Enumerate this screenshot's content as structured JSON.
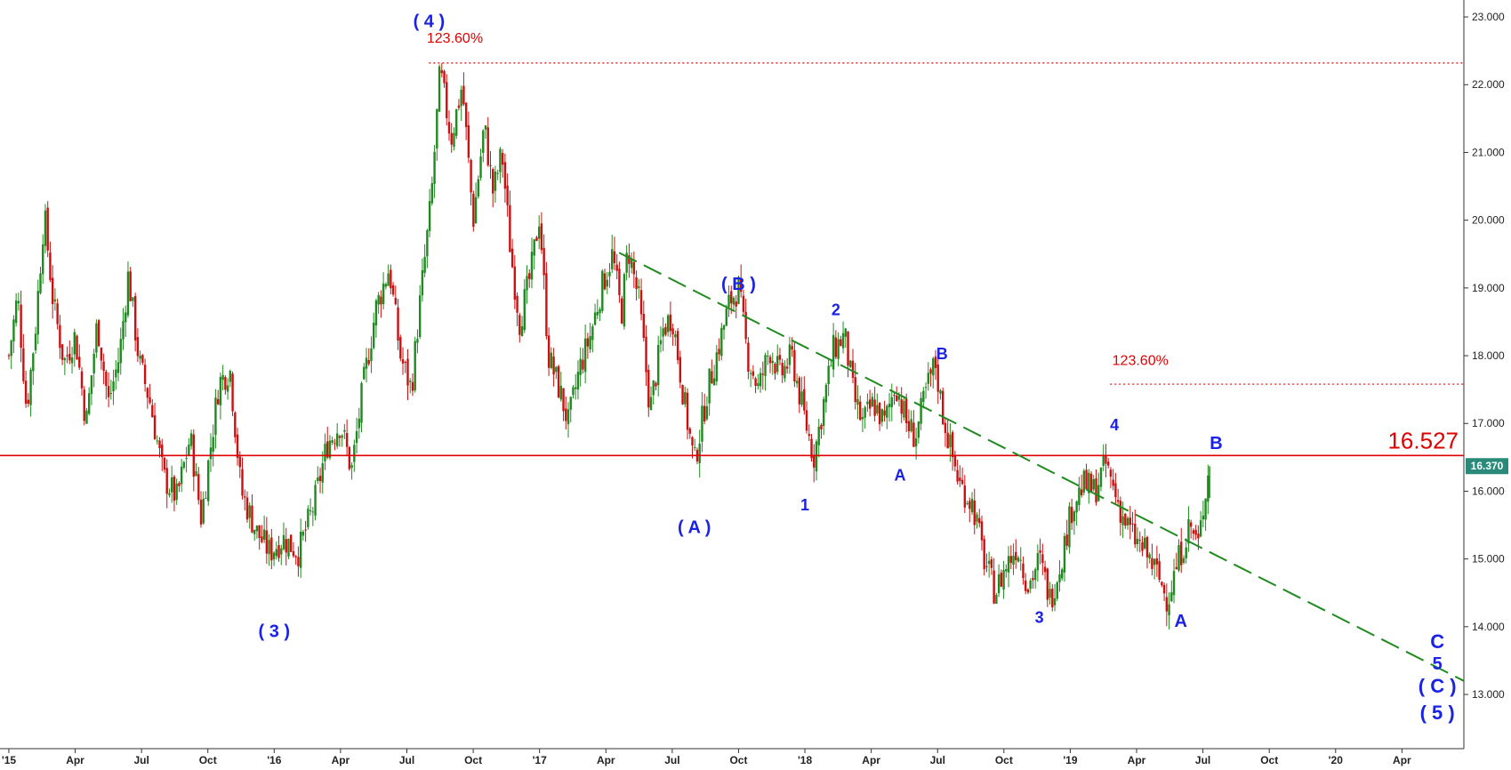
{
  "chart_data": {
    "type": "candlestick",
    "ylim": [
      12.2,
      23.25
    ],
    "x_range_months": [
      -0.4,
      65.8
    ],
    "x_ticks": [
      {
        "m": 0,
        "label": "'15"
      },
      {
        "m": 3,
        "label": "Apr"
      },
      {
        "m": 6,
        "label": "Jul"
      },
      {
        "m": 9,
        "label": "Oct"
      },
      {
        "m": 12,
        "label": "'16"
      },
      {
        "m": 15,
        "label": "Apr"
      },
      {
        "m": 18,
        "label": "Jul"
      },
      {
        "m": 21,
        "label": "Oct"
      },
      {
        "m": 24,
        "label": "'17"
      },
      {
        "m": 27,
        "label": "Apr"
      },
      {
        "m": 30,
        "label": "Jul"
      },
      {
        "m": 33,
        "label": "Oct"
      },
      {
        "m": 36,
        "label": "'18"
      },
      {
        "m": 39,
        "label": "Apr"
      },
      {
        "m": 42,
        "label": "Jul"
      },
      {
        "m": 45,
        "label": "Oct"
      },
      {
        "m": 48,
        "label": "'19"
      },
      {
        "m": 51,
        "label": "Apr"
      },
      {
        "m": 54,
        "label": "Jul"
      },
      {
        "m": 57,
        "label": "Oct"
      },
      {
        "m": 60,
        "label": "'20"
      },
      {
        "m": 63,
        "label": "Apr"
      },
      {
        "m": 66,
        "label": "Jul"
      },
      {
        "m": 69,
        "label": "Oct"
      }
    ],
    "y_ticks": [
      "13.000",
      "14.000",
      "15.000",
      "16.000",
      "17.000",
      "18.000",
      "19.000",
      "20.000",
      "21.000",
      "22.000",
      "23.000"
    ],
    "y_tick_values": [
      13,
      14,
      15,
      16,
      17,
      18,
      19,
      20,
      21,
      22,
      23
    ],
    "price_path": [
      [
        0,
        18.0
      ],
      [
        0.4,
        18.9
      ],
      [
        0.8,
        17.2
      ],
      [
        1.2,
        18.4
      ],
      [
        1.6,
        20.1
      ],
      [
        2.0,
        18.8
      ],
      [
        2.5,
        17.9
      ],
      [
        3.0,
        18.3
      ],
      [
        3.5,
        17.0
      ],
      [
        4.0,
        18.5
      ],
      [
        4.5,
        17.3
      ],
      [
        5.0,
        18.0
      ],
      [
        5.4,
        19.2
      ],
      [
        5.9,
        17.9
      ],
      [
        6.4,
        17.3
      ],
      [
        7.0,
        16.2
      ],
      [
        7.6,
        15.9
      ],
      [
        8.2,
        16.8
      ],
      [
        8.7,
        15.6
      ],
      [
        9.1,
        16.6
      ],
      [
        9.5,
        17.6
      ],
      [
        10.0,
        17.8
      ],
      [
        10.5,
        16.0
      ],
      [
        11.2,
        15.4
      ],
      [
        11.8,
        15.1
      ],
      [
        12.4,
        15.3
      ],
      [
        13.1,
        15.1
      ],
      [
        13.8,
        15.8
      ],
      [
        14.4,
        16.7
      ],
      [
        15.0,
        17.0
      ],
      [
        15.5,
        16.3
      ],
      [
        16.0,
        17.5
      ],
      [
        16.6,
        18.7
      ],
      [
        17.2,
        19.3
      ],
      [
        17.7,
        18.0
      ],
      [
        18.2,
        17.5
      ],
      [
        18.6,
        18.8
      ],
      [
        19.1,
        20.3
      ],
      [
        19.5,
        22.2
      ],
      [
        20.0,
        21.2
      ],
      [
        20.5,
        22.0
      ],
      [
        21.0,
        20.0
      ],
      [
        21.5,
        21.4
      ],
      [
        21.9,
        20.4
      ],
      [
        22.3,
        21.0
      ],
      [
        22.7,
        19.5
      ],
      [
        23.1,
        18.5
      ],
      [
        23.6,
        19.2
      ],
      [
        24.0,
        20.1
      ],
      [
        24.4,
        18.0
      ],
      [
        24.9,
        17.5
      ],
      [
        25.3,
        17.0
      ],
      [
        25.8,
        17.8
      ],
      [
        26.3,
        18.3
      ],
      [
        26.8,
        19.0
      ],
      [
        27.3,
        19.5
      ],
      [
        27.7,
        18.6
      ],
      [
        28.0,
        19.6
      ],
      [
        28.5,
        18.8
      ],
      [
        29.0,
        17.2
      ],
      [
        29.6,
        18.4
      ],
      [
        30.0,
        18.6
      ],
      [
        30.6,
        17.2
      ],
      [
        31.0,
        16.4
      ],
      [
        31.6,
        17.5
      ],
      [
        32.0,
        18.0
      ],
      [
        32.6,
        18.8
      ],
      [
        33.0,
        19.0
      ],
      [
        33.4,
        18.0
      ],
      [
        33.9,
        17.5
      ],
      [
        34.4,
        18.1
      ],
      [
        34.9,
        17.7
      ],
      [
        35.4,
        18.0
      ],
      [
        35.9,
        17.2
      ],
      [
        36.4,
        16.5
      ],
      [
        36.9,
        17.4
      ],
      [
        37.3,
        18.1
      ],
      [
        37.8,
        18.3
      ],
      [
        38.2,
        17.4
      ],
      [
        38.6,
        17.0
      ],
      [
        39.1,
        17.3
      ],
      [
        39.6,
        17.0
      ],
      [
        40.1,
        17.6
      ],
      [
        40.6,
        17.0
      ],
      [
        41.0,
        16.8
      ],
      [
        41.5,
        17.5
      ],
      [
        41.9,
        17.9
      ],
      [
        42.2,
        17.2
      ],
      [
        42.6,
        16.6
      ],
      [
        43.0,
        16.1
      ],
      [
        43.6,
        15.8
      ],
      [
        44.1,
        15.0
      ],
      [
        44.6,
        14.5
      ],
      [
        45.1,
        14.9
      ],
      [
        45.6,
        15.2
      ],
      [
        46.1,
        14.6
      ],
      [
        46.6,
        15.0
      ],
      [
        47.1,
        14.4
      ],
      [
        47.6,
        15.0
      ],
      [
        48.1,
        15.8
      ],
      [
        48.6,
        16.1
      ],
      [
        49.1,
        16.0
      ],
      [
        49.6,
        16.4
      ],
      [
        50.0,
        16.0
      ],
      [
        50.4,
        15.6
      ],
      [
        50.9,
        15.3
      ],
      [
        51.4,
        15.1
      ],
      [
        51.9,
        14.8
      ],
      [
        52.4,
        14.4
      ],
      [
        52.9,
        15.0
      ],
      [
        53.4,
        15.5
      ],
      [
        53.8,
        15.2
      ],
      [
        54.1,
        16.0
      ],
      [
        54.3,
        16.37
      ]
    ],
    "lines": [
      {
        "name": "horizontal-16527",
        "value": 16.527,
        "color": "#e00000",
        "style": "solid"
      },
      {
        "name": "fib-upper",
        "value": 22.32,
        "from_m": 19.0,
        "color": "#e00000",
        "style": "dotted"
      },
      {
        "name": "fib-lower",
        "value": 17.58,
        "from_m": 49.8,
        "color": "#e00000",
        "style": "dotted"
      }
    ],
    "trendline": {
      "from": [
        27.6,
        19.52
      ],
      "to": [
        65.8,
        13.2
      ],
      "color": "#208a20",
      "style": "dashed"
    },
    "horizontal_label": "16.527",
    "last_price": "16.370",
    "fib_labels": [
      {
        "text": "123.60%",
        "m": 18.9,
        "v": 22.62
      },
      {
        "text": "123.60%",
        "m": 49.9,
        "v": 17.86
      }
    ],
    "wave_labels": [
      {
        "text": "( 4 )",
        "m": 19.0,
        "v": 22.85,
        "size": 20
      },
      {
        "text": "( 3 )",
        "m": 12.0,
        "v": 13.85,
        "size": 20
      },
      {
        "text": "( B )",
        "m": 33.0,
        "v": 18.97,
        "size": 20
      },
      {
        "text": "( A )",
        "m": 31.0,
        "v": 15.38,
        "size": 20
      },
      {
        "text": "2",
        "m": 37.4,
        "v": 18.6,
        "size": 18
      },
      {
        "text": "1",
        "m": 36.0,
        "v": 15.72,
        "size": 18
      },
      {
        "text": "B",
        "m": 42.2,
        "v": 17.95,
        "size": 18
      },
      {
        "text": "A",
        "m": 40.3,
        "v": 16.16,
        "size": 18
      },
      {
        "text": "4",
        "m": 50.0,
        "v": 16.9,
        "size": 18
      },
      {
        "text": "3",
        "m": 46.6,
        "v": 14.06,
        "size": 18
      },
      {
        "text": "B",
        "m": 54.6,
        "v": 16.62,
        "size": 20
      },
      {
        "text": "A",
        "m": 53.0,
        "v": 14.0,
        "size": 20
      },
      {
        "text": "C",
        "m": 64.6,
        "v": 13.68,
        "size": 22
      },
      {
        "text": "5",
        "m": 64.6,
        "v": 13.37,
        "size": 20
      },
      {
        "text": "( C )",
        "m": 64.6,
        "v": 13.03,
        "size": 22
      },
      {
        "text": "( 5 )",
        "m": 64.6,
        "v": 12.63,
        "size": 22
      }
    ]
  },
  "colors": {
    "up": "#1f8a1f",
    "down": "#cc1010",
    "price_tag_bg": "#2a8a7a",
    "axis": "#444444"
  }
}
